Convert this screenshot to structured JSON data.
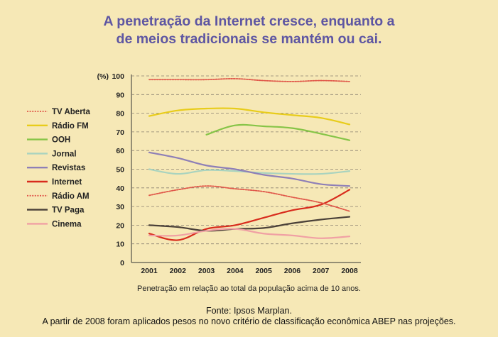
{
  "title_lines": [
    "A penetração da Internet cresce, enquanto a",
    "de meios tradicionais se mantém ou cai."
  ],
  "caption": "Penetração em relação ao total da população acima de 10 anos.",
  "source_lines": [
    "Fonte: Ipsos Marplan.",
    "A partir de 2008 foram aplicados pesos no novo critério de classificação econômica ABEP nas projeções."
  ],
  "chart_data": {
    "type": "line",
    "ylabel": "(%)",
    "ylim": [
      0,
      100
    ],
    "yticks": [
      0,
      10,
      20,
      30,
      40,
      50,
      60,
      70,
      80,
      90,
      100
    ],
    "x": [
      "2001",
      "2002",
      "2003",
      "2004",
      "2005",
      "2006",
      "2007",
      "2008"
    ],
    "grid": "horizontal dashed",
    "legend_position": "left",
    "series": [
      {
        "name": "TV Aberta",
        "color": "#e0584a",
        "dashed": true,
        "values": [
          98,
          98,
          98,
          98.5,
          97.5,
          97,
          97.5,
          97
        ]
      },
      {
        "name": "Rádio FM",
        "color": "#e8cc1a",
        "dashed": false,
        "values": [
          78.5,
          81.5,
          82.5,
          82.5,
          80.5,
          79,
          77.5,
          74
        ]
      },
      {
        "name": "OOH",
        "color": "#86c447",
        "dashed": false,
        "values": [
          null,
          null,
          68.5,
          73.5,
          73,
          72,
          69,
          65.5
        ]
      },
      {
        "name": "Jornal",
        "color": "#a9d3bf",
        "dashed": false,
        "values": [
          50,
          47.5,
          49.5,
          49,
          48,
          47.5,
          47.5,
          49
        ]
      },
      {
        "name": "Revistas",
        "color": "#8e7fb7",
        "dashed": false,
        "values": [
          59,
          56,
          52,
          50,
          47,
          45,
          42,
          41
        ]
      },
      {
        "name": "Internet",
        "color": "#d82b1c",
        "dashed": false,
        "values": [
          15.5,
          12,
          18,
          20,
          24,
          28,
          31,
          39
        ]
      },
      {
        "name": "Rádio AM",
        "color": "#e0584a",
        "dashed": true,
        "values": [
          36,
          39,
          41,
          39.5,
          38,
          35,
          32,
          27.5
        ]
      },
      {
        "name": "TV Paga",
        "color": "#4a4038",
        "dashed": false,
        "values": [
          20,
          19,
          17,
          18,
          18.5,
          21,
          23,
          24.5
        ]
      },
      {
        "name": "Cinema",
        "color": "#f0a0a4",
        "dashed": false,
        "values": [
          14.5,
          14.5,
          17,
          18,
          15.5,
          14.5,
          13,
          14
        ]
      }
    ]
  }
}
